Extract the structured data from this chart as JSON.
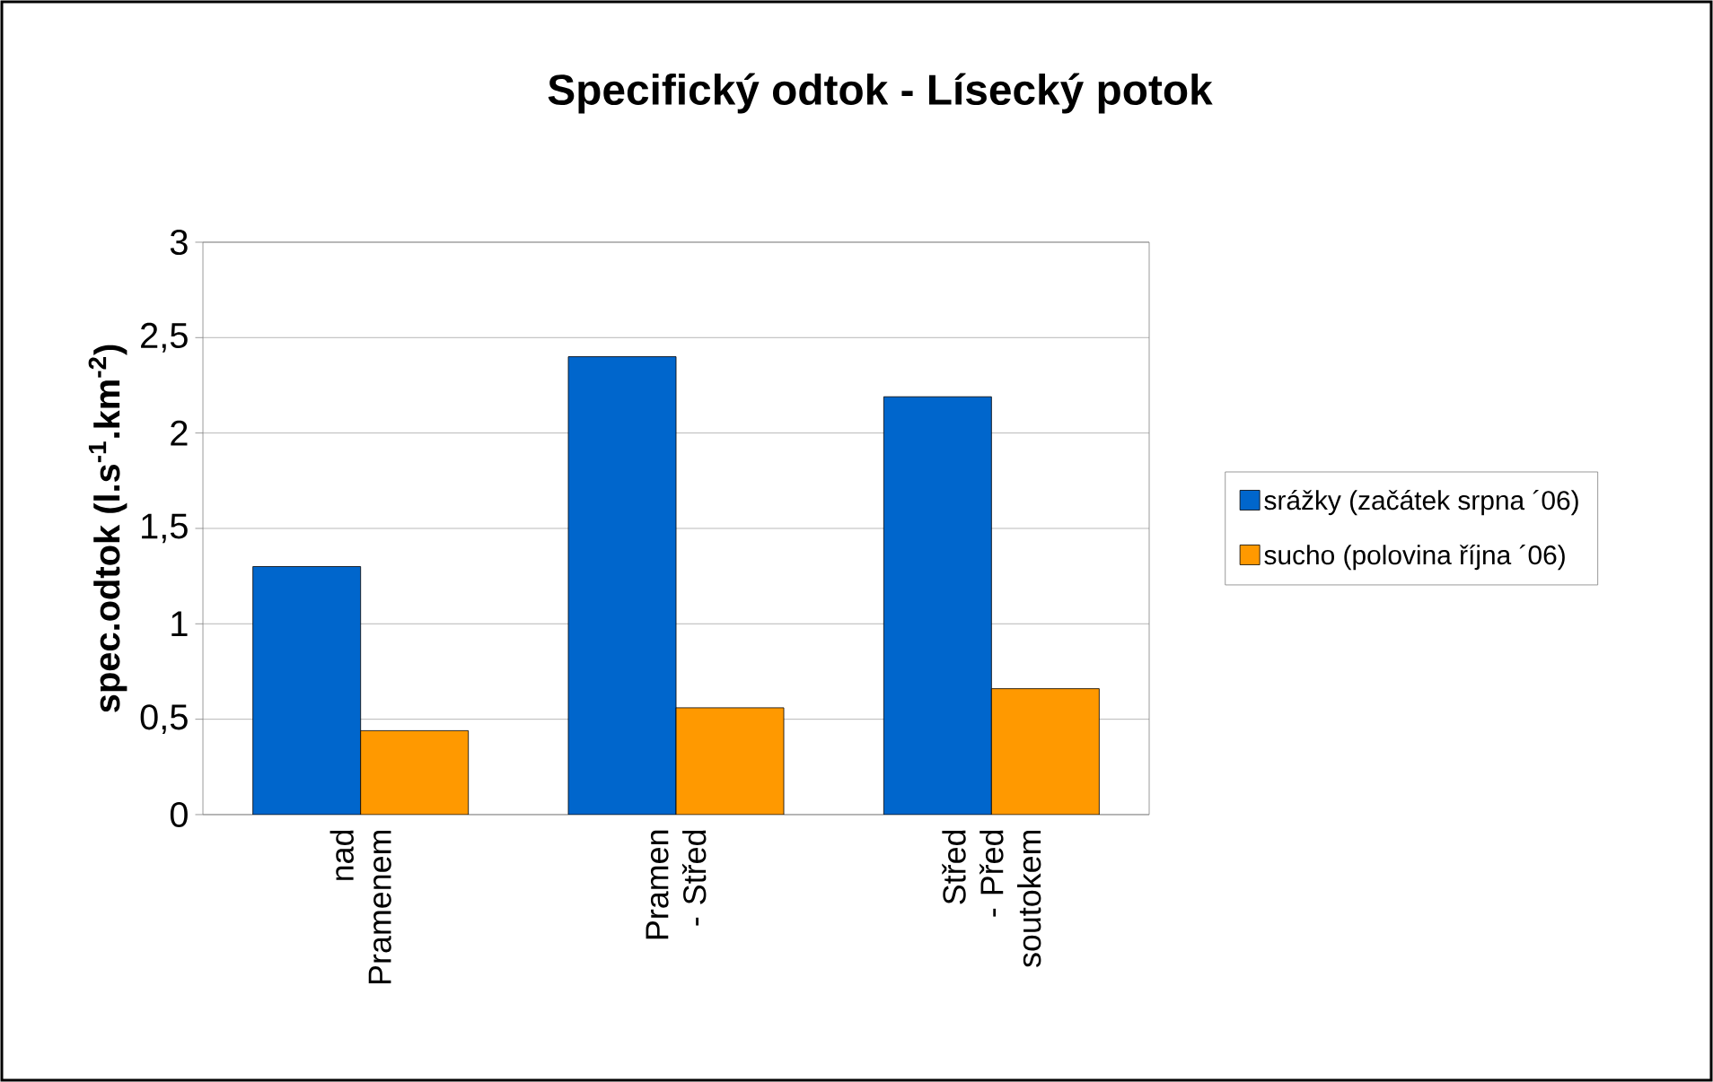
{
  "chart_data": {
    "type": "bar",
    "title": "Specifický odtok - Lísecký potok",
    "ylabel": "spec.odtok (l.s$^{-1}$.km$^{-2}$)",
    "categories": [
      "nad Pramenem",
      "Pramen - Střed",
      "Střed - Před soutokem"
    ],
    "series": [
      {
        "name": "srážky (začátek srpna ´06)",
        "color": "#0066cc",
        "values": [
          1.3,
          2.4,
          2.19
        ]
      },
      {
        "name": "sucho (polovina října ´06)",
        "color": "#ff9900",
        "values": [
          0.44,
          0.56,
          0.66
        ]
      }
    ],
    "ylim": [
      0,
      3
    ],
    "yticks": [
      0,
      {
        "value": 0.5,
        "label": "0,5"
      },
      1,
      {
        "value": 1.5,
        "label": "1,5"
      },
      2,
      {
        "value": 2.5,
        "label": "2,5"
      },
      3
    ],
    "grid": "y",
    "legend": "right"
  }
}
